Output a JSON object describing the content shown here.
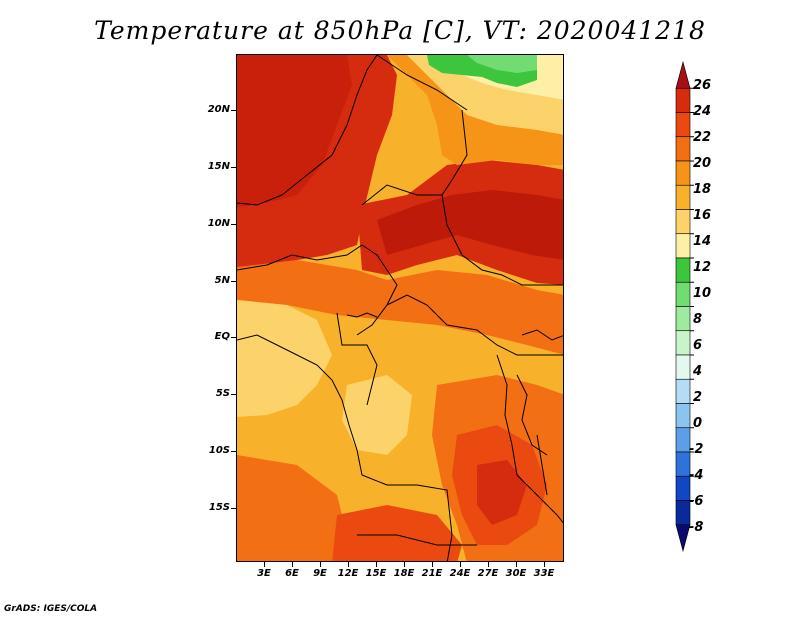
{
  "title": "Temperature at 850hPa [C], VT: 2020041218",
  "credit": "GrADS: IGES/COLA",
  "map": {
    "lat_labels": [
      "20N",
      "15N",
      "10N",
      "5N",
      "EQ",
      "5S",
      "10S",
      "15S"
    ],
    "lon_labels": [
      "3E",
      "6E",
      "9E",
      "12E",
      "15E",
      "18E",
      "21E",
      "24E",
      "27E",
      "30E",
      "33E"
    ]
  },
  "colorbar": {
    "labels": [
      "26",
      "24",
      "22",
      "20",
      "18",
      "16",
      "14",
      "12",
      "10",
      "8",
      "6",
      "4",
      "2",
      "0",
      "-2",
      "-4",
      "-6",
      "-8"
    ],
    "colors": [
      "#a50f15",
      "#d52b0e",
      "#ea4a10",
      "#f26f14",
      "#f59416",
      "#f8b12b",
      "#fbd36a",
      "#fdf0a6",
      "#3dc63d",
      "#72dc72",
      "#9eea9e",
      "#c8f5c8",
      "#e4f8f0",
      "#b4dcf4",
      "#8cc4f0",
      "#5c9ee8",
      "#2e72da",
      "#1146c4",
      "#0b2a9a",
      "#0a0a70"
    ]
  }
}
